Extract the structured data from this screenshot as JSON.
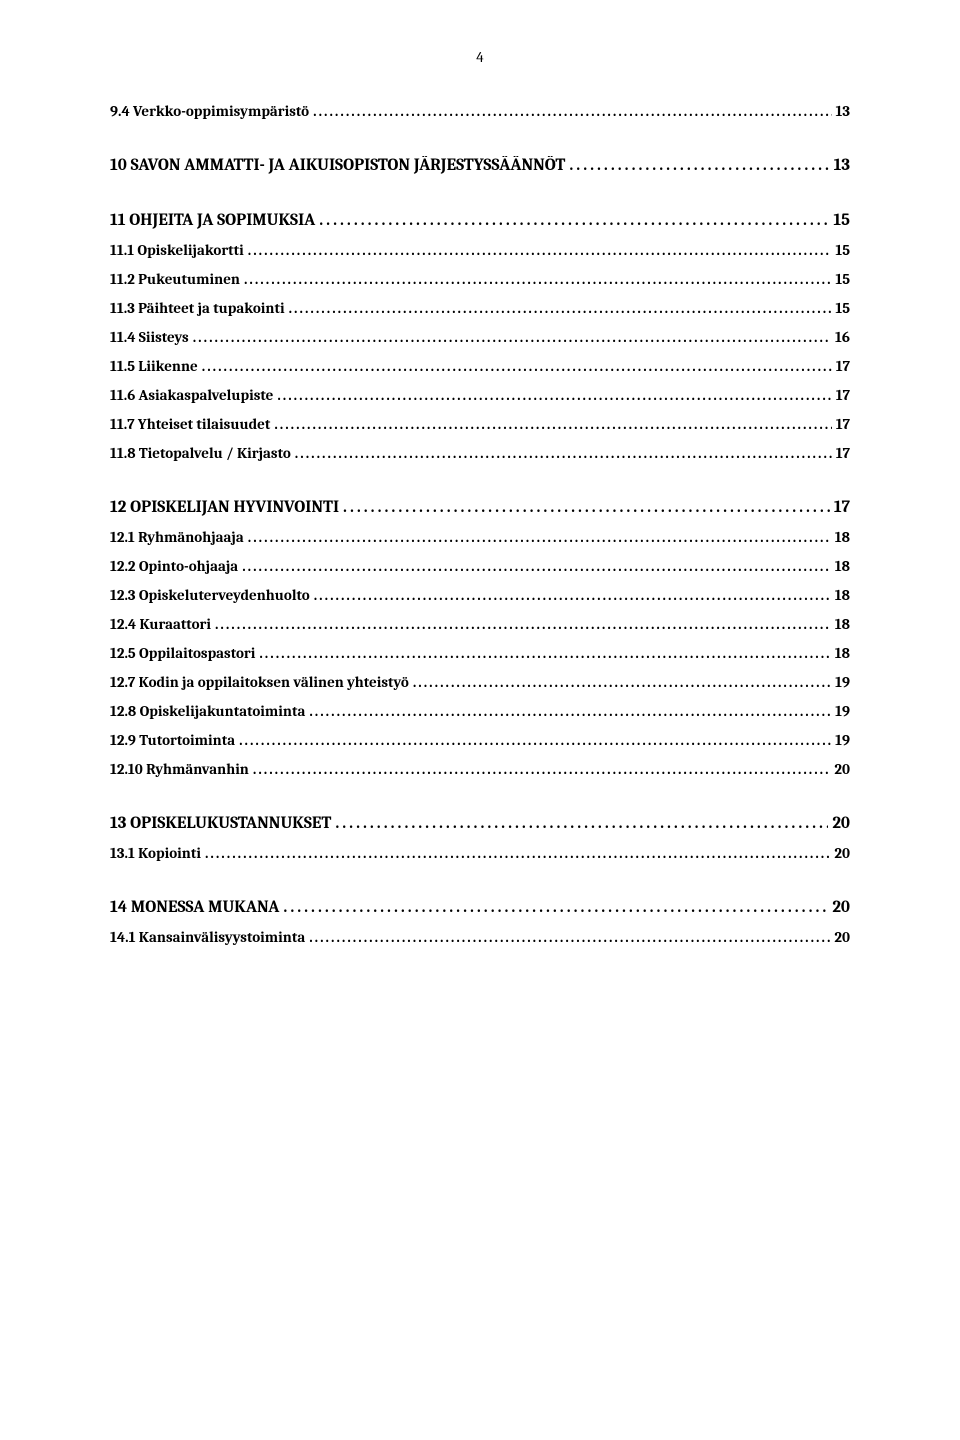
{
  "page_number": "4",
  "entries": [
    {
      "level": "sub",
      "label": "9.4 Verkko-oppimisympäristö",
      "page": "13"
    },
    {
      "level": "heading",
      "label": "10 SAVON AMMATTI- JA AIKUISOPISTON JÄRJESTYSSÄÄNNÖT",
      "page": "13"
    },
    {
      "level": "heading",
      "label": "11 OHJEITA JA SOPIMUKSIA",
      "page": "15"
    },
    {
      "level": "sub",
      "label": "11.1 Opiskelijakortti",
      "page": "15"
    },
    {
      "level": "sub",
      "label": "11.2 Pukeutuminen",
      "page": "15"
    },
    {
      "level": "sub",
      "label": "11.3 Päihteet ja tupakointi",
      "page": "15"
    },
    {
      "level": "sub",
      "label": "11.4 Siisteys",
      "page": "16"
    },
    {
      "level": "sub",
      "label": "11.5 Liikenne",
      "page": "17"
    },
    {
      "level": "sub",
      "label": "11.6 Asiakaspalvelupiste",
      "page": "17"
    },
    {
      "level": "sub",
      "label": "11.7 Yhteiset tilaisuudet",
      "page": "17"
    },
    {
      "level": "sub",
      "label": "11.8 Tietopalvelu / Kirjasto",
      "page": "17"
    },
    {
      "level": "heading",
      "label": "12 OPISKELIJAN HYVINVOINTI",
      "page": "17"
    },
    {
      "level": "sub",
      "label": "12.1 Ryhmänohjaaja",
      "page": "18"
    },
    {
      "level": "sub",
      "label": "12.2 Opinto-ohjaaja",
      "page": "18"
    },
    {
      "level": "sub",
      "label": "12.3 Opiskeluterveydenhuolto",
      "page": "18"
    },
    {
      "level": "sub",
      "label": "12.4 Kuraattori",
      "page": "18"
    },
    {
      "level": "sub",
      "label": "12.5 Oppilaitospastori",
      "page": "18"
    },
    {
      "level": "sub",
      "label": "12.7 Kodin ja oppilaitoksen välinen yhteistyö",
      "page": "19"
    },
    {
      "level": "sub",
      "label": "12.8 Opiskelijakuntatoiminta",
      "page": "19"
    },
    {
      "level": "sub",
      "label": "12.9 Tutortoiminta",
      "page": "19"
    },
    {
      "level": "sub",
      "label": "12.10 Ryhmänvanhin",
      "page": "20"
    },
    {
      "level": "heading",
      "label": "13 OPISKELUKUSTANNUKSET",
      "page": "20"
    },
    {
      "level": "sub",
      "label": "13.1 Kopiointi",
      "page": "20"
    },
    {
      "level": "heading",
      "label": "14 MONESSA MUKANA",
      "page": "20"
    },
    {
      "level": "sub",
      "label": "14.1 Kansainvälisyystoiminta",
      "page": "20"
    }
  ]
}
